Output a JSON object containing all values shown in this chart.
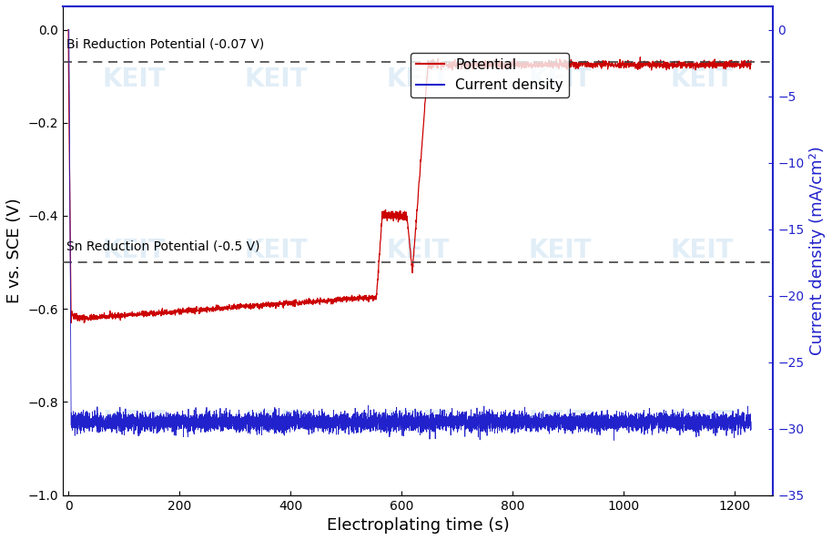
{
  "xlabel": "Electroplating time (s)",
  "ylabel_left": "E vs. SCE (V)",
  "ylabel_right": "Current density (mA/cm²)",
  "xlim": [
    -10,
    1270
  ],
  "ylim_left": [
    -1.0,
    0.05
  ],
  "ylim_right": [
    -35,
    1.75
  ],
  "xticks": [
    0,
    200,
    400,
    600,
    800,
    1000,
    1200
  ],
  "yticks_left": [
    0.0,
    -0.2,
    -0.4,
    -0.6,
    -0.8,
    -1.0
  ],
  "yticks_right": [
    0,
    -5,
    -10,
    -15,
    -20,
    -25,
    -30,
    -35
  ],
  "bi_potential": -0.07,
  "sn_potential": -0.5,
  "bi_label": "Bi Reduction Potential (-0.07 V)",
  "sn_label": "Sn Reduction Potential (-0.5 V)",
  "legend_potential": "Potential",
  "legend_current": "Current density",
  "line_color_potential": "#cc0000",
  "line_color_current": "#2222cc",
  "spine_color_right": "#2222cc",
  "background_color": "#ffffff"
}
